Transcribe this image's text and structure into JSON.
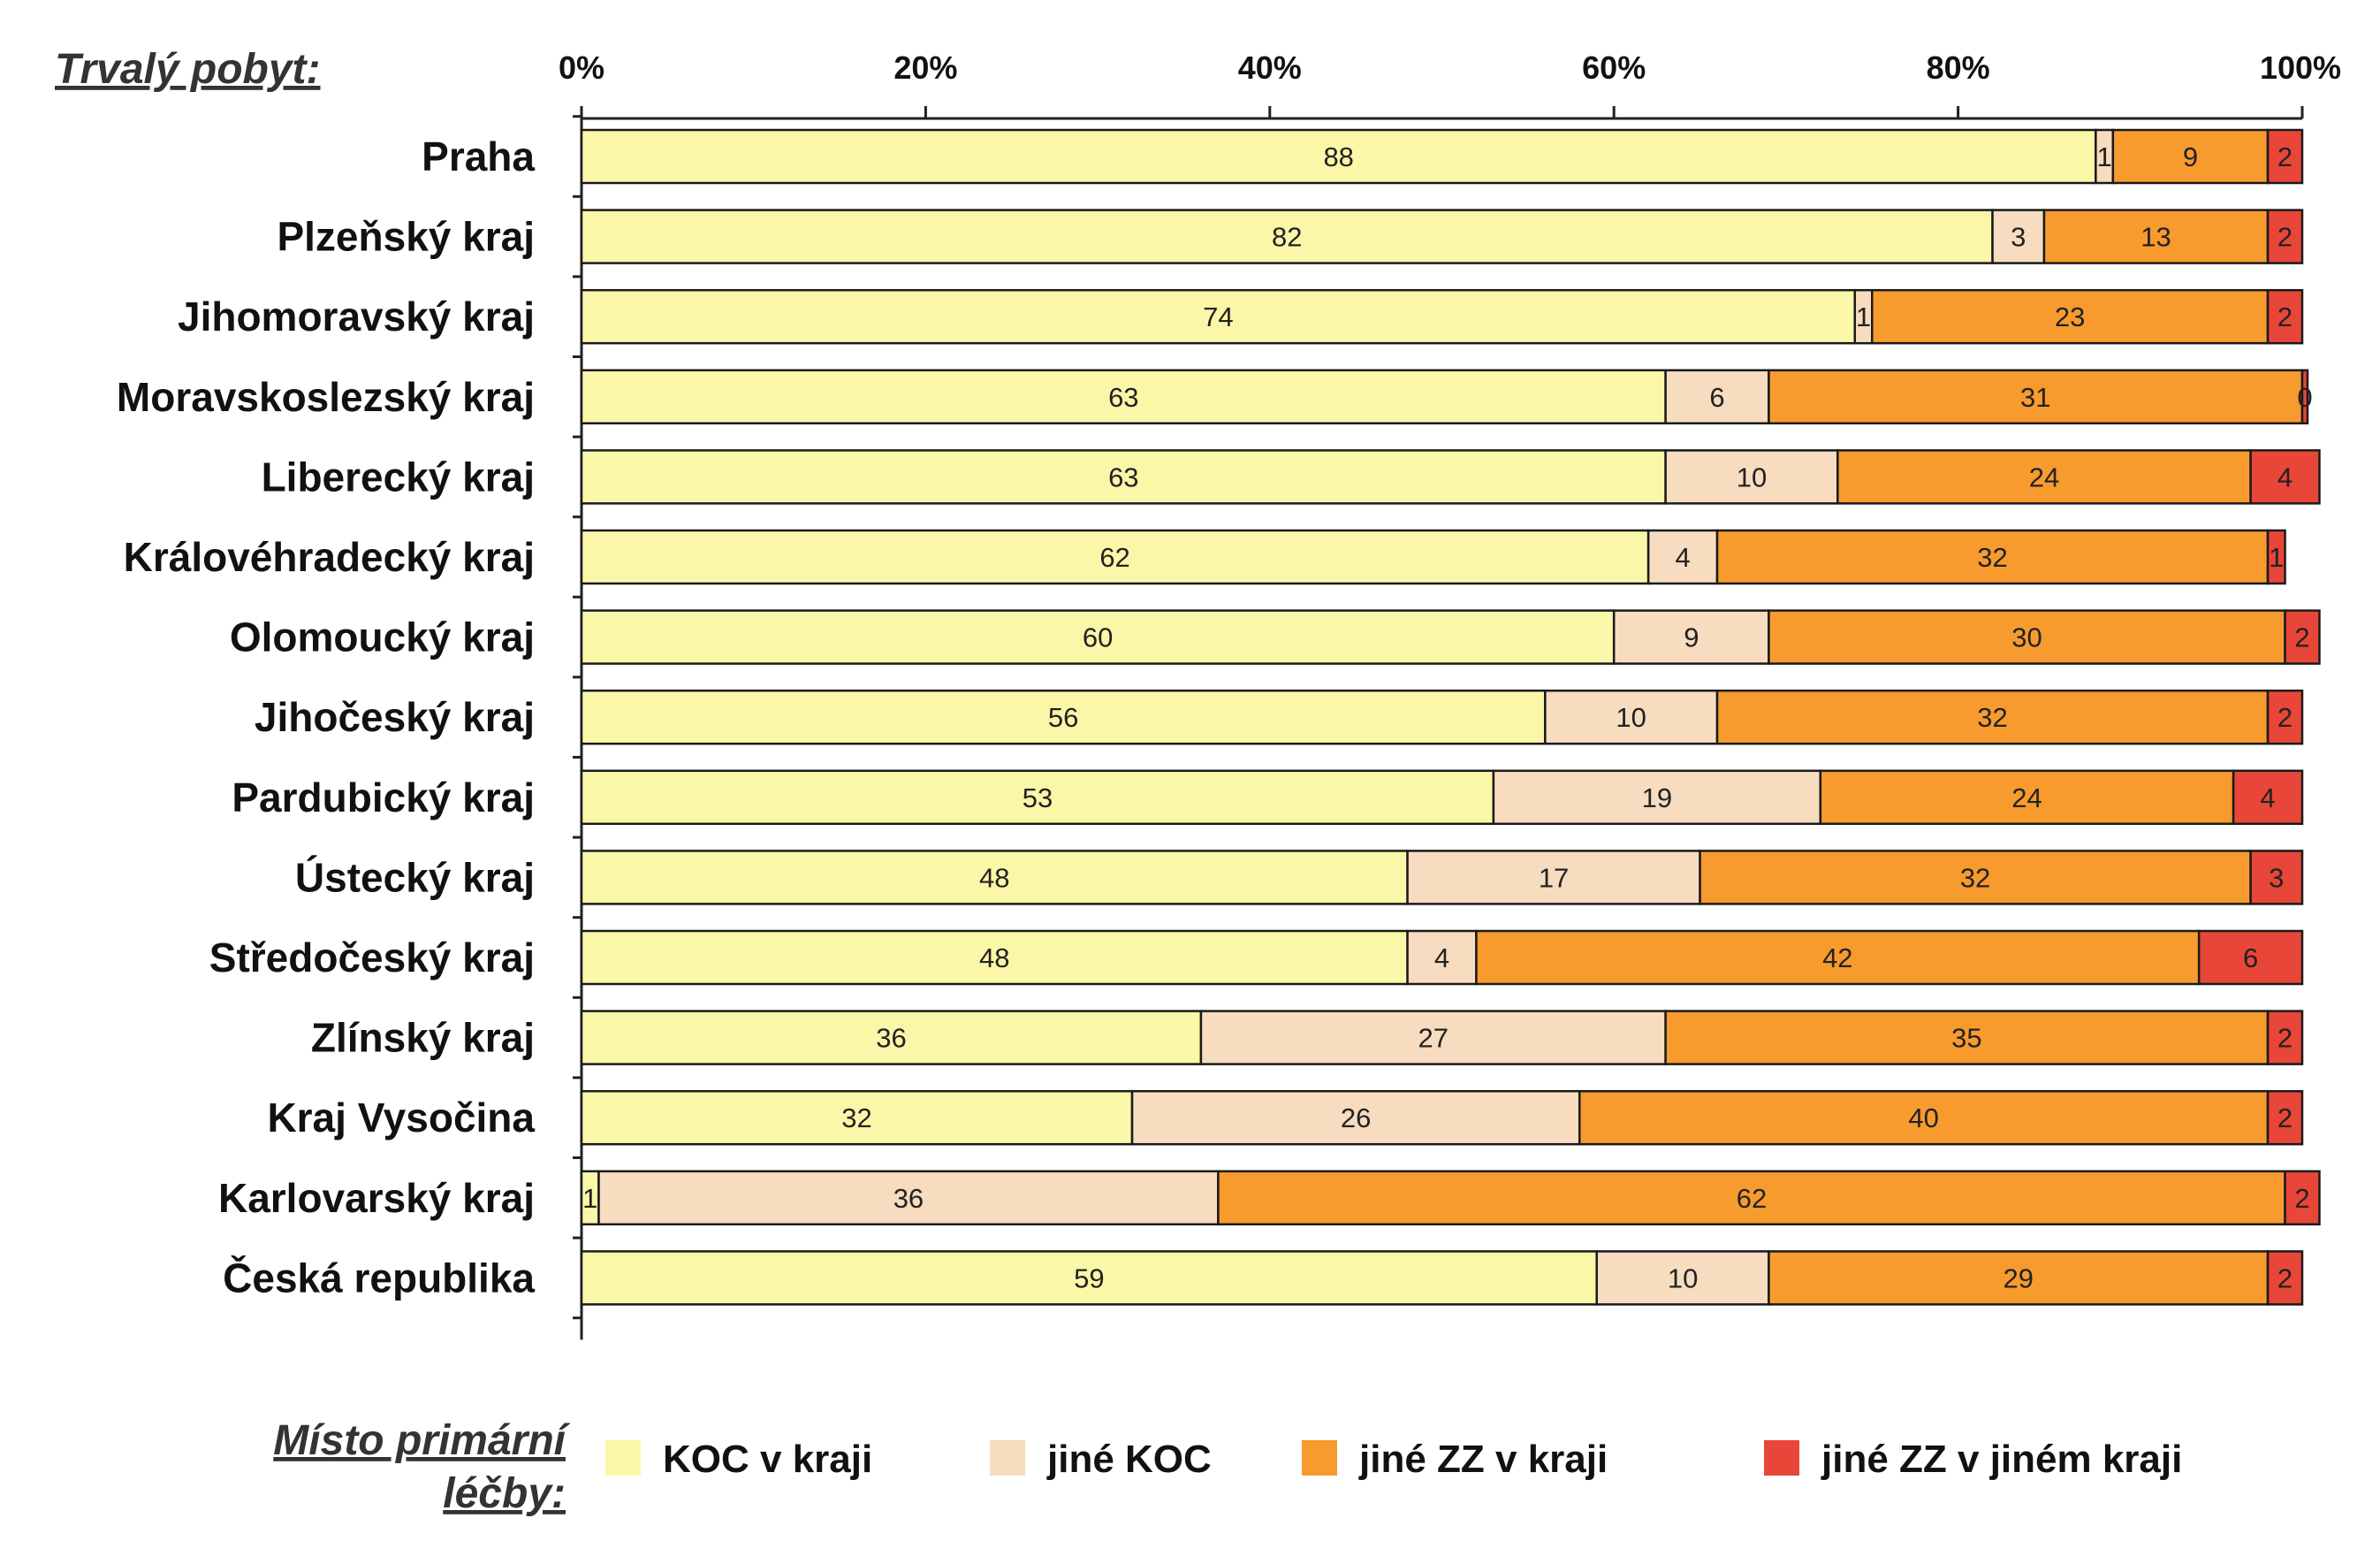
{
  "chart_data": {
    "type": "bar",
    "orientation": "horizontal",
    "stacked": "percent",
    "title": "Trvalý pobyt:",
    "legend_title": [
      "Místo primární",
      "léčby:"
    ],
    "legend_position": "bottom",
    "xlim": [
      0,
      100
    ],
    "x_ticks": [
      "0%",
      "20%",
      "40%",
      "60%",
      "80%",
      "100%"
    ],
    "categories": [
      "Praha",
      "Plzeňský kraj",
      "Jihomoravský kraj",
      "Moravskoslezský kraj",
      "Liberecký kraj",
      "Královéhradecký kraj",
      "Olomoucký kraj",
      "Jihočeský kraj",
      "Pardubický kraj",
      "Ústecký kraj",
      "Středočeský kraj",
      "Zlínský kraj",
      "Kraj Vysočina",
      "Karlovarský kraj",
      "Česká republika"
    ],
    "series": [
      {
        "name": "KOC v kraji",
        "color": "#fbf7a8",
        "values": [
          88,
          82,
          74,
          63,
          63,
          62,
          60,
          56,
          53,
          48,
          48,
          36,
          32,
          1,
          59
        ]
      },
      {
        "name": "jiné KOC",
        "color": "#f7dcc0",
        "values": [
          1,
          3,
          1,
          6,
          10,
          4,
          9,
          10,
          19,
          17,
          4,
          27,
          26,
          36,
          10
        ]
      },
      {
        "name": "jiné ZZ v kraji",
        "color": "#f79b2e",
        "values": [
          9,
          13,
          23,
          31,
          24,
          32,
          30,
          32,
          24,
          32,
          42,
          35,
          40,
          62,
          29
        ]
      },
      {
        "name": "jiné ZZ v jiném kraji",
        "color": "#e84638",
        "values": [
          2,
          2,
          2,
          0,
          4,
          1,
          2,
          2,
          4,
          3,
          6,
          2,
          2,
          2,
          2
        ]
      }
    ],
    "grid": false
  }
}
